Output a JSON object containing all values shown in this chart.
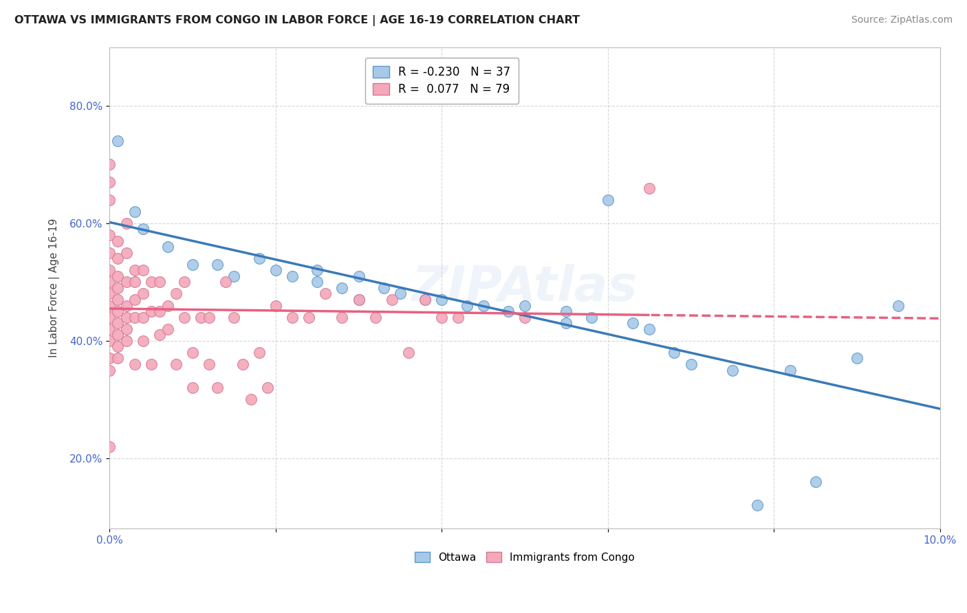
{
  "title": "OTTAWA VS IMMIGRANTS FROM CONGO IN LABOR FORCE | AGE 16-19 CORRELATION CHART",
  "source": "Source: ZipAtlas.com",
  "xlabel": "",
  "ylabel": "In Labor Force | Age 16-19",
  "xlim": [
    0.0,
    0.1
  ],
  "ylim": [
    0.08,
    0.9
  ],
  "x_ticks": [
    0.0,
    0.02,
    0.04,
    0.06,
    0.08,
    0.1
  ],
  "x_tick_labels": [
    "0.0%",
    "",
    "",
    "",
    "",
    "10.0%"
  ],
  "y_ticks": [
    0.2,
    0.4,
    0.6,
    0.8
  ],
  "y_tick_labels": [
    "20.0%",
    "40.0%",
    "60.0%",
    "80.0%"
  ],
  "ottawa_color": "#a8c8e8",
  "congo_color": "#f4a8b8",
  "ottawa_edge": "#5a9ac8",
  "congo_edge": "#d47898",
  "ottawa_line_color": "#3a7ab8",
  "congo_line_color": "#e86080",
  "ottawa_R": -0.23,
  "ottawa_N": 37,
  "congo_R": 0.077,
  "congo_N": 79,
  "background_color": "#ffffff",
  "grid_color": "#cccccc",
  "legend_label_ottawa": "Ottawa",
  "legend_label_congo": "Immigrants from Congo",
  "ottawa_points_x": [
    0.001,
    0.003,
    0.004,
    0.007,
    0.01,
    0.013,
    0.015,
    0.018,
    0.02,
    0.022,
    0.025,
    0.025,
    0.028,
    0.03,
    0.03,
    0.033,
    0.035,
    0.038,
    0.04,
    0.043,
    0.045,
    0.048,
    0.05,
    0.055,
    0.055,
    0.058,
    0.06,
    0.063,
    0.065,
    0.068,
    0.07,
    0.075,
    0.078,
    0.082,
    0.085,
    0.09,
    0.095
  ],
  "ottawa_points_y": [
    0.74,
    0.62,
    0.59,
    0.56,
    0.53,
    0.53,
    0.51,
    0.54,
    0.52,
    0.51,
    0.52,
    0.5,
    0.49,
    0.51,
    0.47,
    0.49,
    0.48,
    0.47,
    0.47,
    0.46,
    0.46,
    0.45,
    0.46,
    0.45,
    0.43,
    0.44,
    0.64,
    0.43,
    0.42,
    0.38,
    0.36,
    0.35,
    0.12,
    0.35,
    0.16,
    0.37,
    0.46
  ],
  "congo_points_x": [
    0.0,
    0.0,
    0.0,
    0.0,
    0.0,
    0.0,
    0.0,
    0.0,
    0.0,
    0.0,
    0.0,
    0.0,
    0.0,
    0.0,
    0.0,
    0.001,
    0.001,
    0.001,
    0.001,
    0.001,
    0.001,
    0.001,
    0.001,
    0.001,
    0.001,
    0.002,
    0.002,
    0.002,
    0.002,
    0.002,
    0.002,
    0.002,
    0.003,
    0.003,
    0.003,
    0.003,
    0.003,
    0.004,
    0.004,
    0.004,
    0.004,
    0.005,
    0.005,
    0.005,
    0.006,
    0.006,
    0.006,
    0.007,
    0.007,
    0.008,
    0.008,
    0.009,
    0.009,
    0.01,
    0.01,
    0.011,
    0.012,
    0.012,
    0.013,
    0.014,
    0.015,
    0.016,
    0.017,
    0.018,
    0.019,
    0.02,
    0.022,
    0.024,
    0.026,
    0.028,
    0.03,
    0.032,
    0.034,
    0.036,
    0.038,
    0.04,
    0.042,
    0.05,
    0.065
  ],
  "congo_points_y": [
    0.7,
    0.67,
    0.64,
    0.58,
    0.55,
    0.52,
    0.5,
    0.48,
    0.46,
    0.44,
    0.42,
    0.4,
    0.37,
    0.35,
    0.22,
    0.57,
    0.54,
    0.51,
    0.49,
    0.47,
    0.45,
    0.43,
    0.41,
    0.39,
    0.37,
    0.6,
    0.55,
    0.5,
    0.46,
    0.44,
    0.42,
    0.4,
    0.52,
    0.5,
    0.47,
    0.44,
    0.36,
    0.52,
    0.48,
    0.44,
    0.4,
    0.5,
    0.45,
    0.36,
    0.5,
    0.45,
    0.41,
    0.46,
    0.42,
    0.48,
    0.36,
    0.5,
    0.44,
    0.38,
    0.32,
    0.44,
    0.44,
    0.36,
    0.32,
    0.5,
    0.44,
    0.36,
    0.3,
    0.38,
    0.32,
    0.46,
    0.44,
    0.44,
    0.48,
    0.44,
    0.47,
    0.44,
    0.47,
    0.38,
    0.47,
    0.44,
    0.44,
    0.44,
    0.66
  ]
}
